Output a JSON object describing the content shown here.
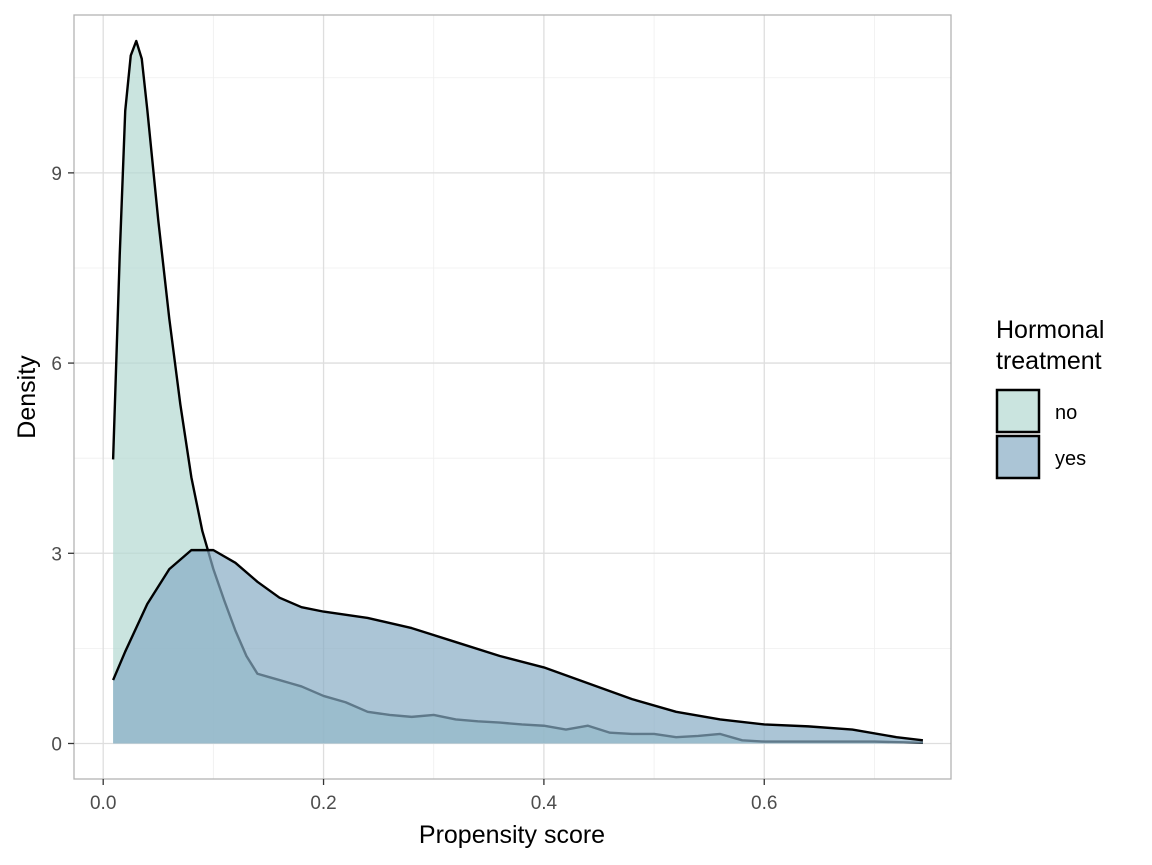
{
  "chart_data": {
    "type": "area",
    "title": "",
    "xlabel": "Propensity score",
    "ylabel": "Density",
    "xlim": [
      -0.0265,
      0.7695
    ],
    "ylim": [
      -0.56,
      11.49
    ],
    "x_ticks": [
      0.0,
      0.2,
      0.4,
      0.6
    ],
    "x_tick_labels": [
      "0.0",
      "0.2",
      "0.4",
      "0.6"
    ],
    "y_ticks": [
      0,
      3,
      6,
      9
    ],
    "y_tick_labels": [
      "0",
      "3",
      "6",
      "9"
    ],
    "grid": true,
    "legend": {
      "title_lines": [
        "Hormonal",
        "treatment"
      ],
      "placement": "right"
    },
    "series": [
      {
        "name": "no",
        "color": "#b3d9d2",
        "x": [
          0.009,
          0.015,
          0.02,
          0.025,
          0.03,
          0.035,
          0.04,
          0.05,
          0.06,
          0.07,
          0.08,
          0.09,
          0.1,
          0.11,
          0.12,
          0.13,
          0.14,
          0.15,
          0.16,
          0.17,
          0.18,
          0.2,
          0.22,
          0.24,
          0.26,
          0.28,
          0.3,
          0.32,
          0.34,
          0.36,
          0.38,
          0.4,
          0.42,
          0.44,
          0.46,
          0.48,
          0.5,
          0.52,
          0.54,
          0.56,
          0.58,
          0.6,
          0.65,
          0.7,
          0.744
        ],
        "values": [
          4.48,
          7.7,
          9.98,
          10.85,
          11.08,
          10.8,
          10.0,
          8.25,
          6.7,
          5.35,
          4.2,
          3.35,
          2.75,
          2.25,
          1.78,
          1.38,
          1.1,
          1.05,
          1.0,
          0.95,
          0.9,
          0.75,
          0.65,
          0.5,
          0.45,
          0.42,
          0.45,
          0.38,
          0.35,
          0.33,
          0.3,
          0.28,
          0.22,
          0.28,
          0.17,
          0.15,
          0.15,
          0.1,
          0.12,
          0.15,
          0.05,
          0.03,
          0.03,
          0.03,
          0.01
        ]
      },
      {
        "name": "yes",
        "color": "#87adc4",
        "x": [
          0.009,
          0.02,
          0.04,
          0.06,
          0.08,
          0.1,
          0.12,
          0.14,
          0.16,
          0.18,
          0.2,
          0.24,
          0.28,
          0.32,
          0.36,
          0.4,
          0.44,
          0.48,
          0.52,
          0.56,
          0.6,
          0.64,
          0.68,
          0.72,
          0.744
        ],
        "values": [
          1.0,
          1.45,
          2.2,
          2.75,
          3.05,
          3.05,
          2.85,
          2.55,
          2.3,
          2.15,
          2.08,
          1.98,
          1.82,
          1.6,
          1.38,
          1.2,
          0.95,
          0.7,
          0.5,
          0.38,
          0.3,
          0.27,
          0.22,
          0.1,
          0.05
        ]
      }
    ]
  }
}
